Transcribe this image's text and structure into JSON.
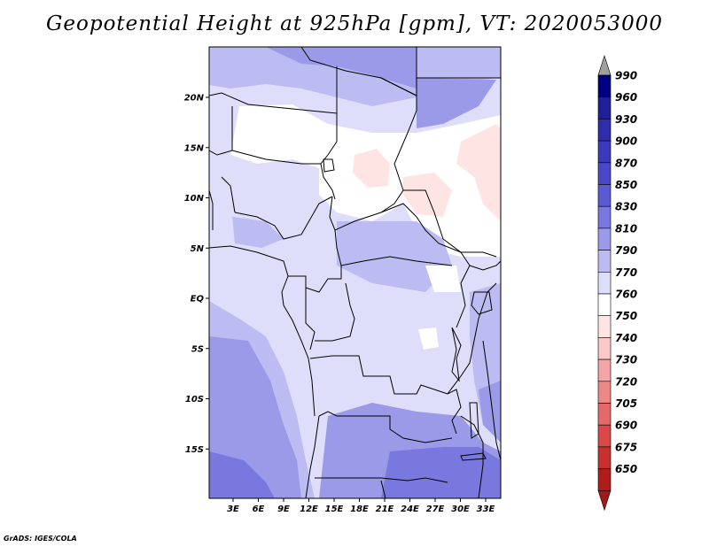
{
  "title": "Geopotential Height at 925hPa [gpm], VT: 2020053000",
  "credit": "GrADS: IGES/COLA",
  "colors": {
    "frame": "#000000",
    "borders": "#000000"
  },
  "lat_axis": {
    "ticks": [
      {
        "label": "20N",
        "value": 20
      },
      {
        "label": "15N",
        "value": 15
      },
      {
        "label": "10N",
        "value": 10
      },
      {
        "label": "5N",
        "value": 5
      },
      {
        "label": "EQ",
        "value": 0
      },
      {
        "label": "5S",
        "value": -5
      },
      {
        "label": "10S",
        "value": -10
      },
      {
        "label": "15S",
        "value": -15
      }
    ]
  },
  "lon_axis": {
    "ticks": [
      {
        "label": "3E",
        "value": 3
      },
      {
        "label": "6E",
        "value": 6
      },
      {
        "label": "9E",
        "value": 9
      },
      {
        "label": "12E",
        "value": 12
      },
      {
        "label": "15E",
        "value": 15
      },
      {
        "label": "18E",
        "value": 18
      },
      {
        "label": "21E",
        "value": 21
      },
      {
        "label": "24E",
        "value": 24
      },
      {
        "label": "27E",
        "value": 27
      },
      {
        "label": "30E",
        "value": 30
      },
      {
        "label": "33E",
        "value": 33
      }
    ]
  },
  "colorbar": {
    "levels": [
      {
        "label": "990",
        "color": "#000080"
      },
      {
        "label": "960",
        "color": "#1f1f9a"
      },
      {
        "label": "930",
        "color": "#2e2eaa"
      },
      {
        "label": "900",
        "color": "#3a3aba"
      },
      {
        "label": "870",
        "color": "#4848c8"
      },
      {
        "label": "850",
        "color": "#5a5ad2"
      },
      {
        "label": "830",
        "color": "#7878de"
      },
      {
        "label": "810",
        "color": "#9a9ae8"
      },
      {
        "label": "790",
        "color": "#bcbcf2"
      },
      {
        "label": "770",
        "color": "#dedefa"
      },
      {
        "label": "760",
        "color": "#ffffff"
      },
      {
        "label": "750",
        "color": "#ffe4e4"
      },
      {
        "label": "740",
        "color": "#fcc8c8"
      },
      {
        "label": "730",
        "color": "#f4a6a6"
      },
      {
        "label": "720",
        "color": "#ec8888"
      },
      {
        "label": "705",
        "color": "#e46a6a"
      },
      {
        "label": "690",
        "color": "#da4848"
      },
      {
        "label": "675",
        "color": "#c83030"
      },
      {
        "label": "650",
        "color": "#b01c1c"
      }
    ],
    "top_arrow_color": "#a0a0a0",
    "bottom_arrow_color": "#a01818"
  }
}
